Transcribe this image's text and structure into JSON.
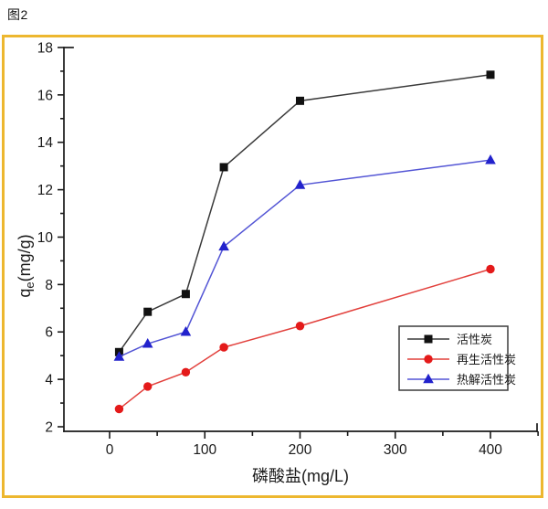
{
  "figure": {
    "caption": "图2"
  },
  "colors": {
    "frame_border": "#edb72f",
    "axis": "#1a1a1a",
    "legend_border": "#3c3c3c",
    "background": "#ffffff"
  },
  "chart_data": {
    "type": "line",
    "title": "",
    "xlabel": "磷酸盐(mg/L)",
    "ylabel": "qe(mg/g)",
    "ylabel_parts": {
      "base": "q",
      "sub": "e",
      "rest": "(mg/g)"
    },
    "x": [
      10,
      40,
      80,
      120,
      200,
      400
    ],
    "series": [
      {
        "name": "活性炭",
        "marker": "square",
        "color": "#111111",
        "line_color": "#3a3a3a",
        "values": [
          5.15,
          6.85,
          7.6,
          12.95,
          15.75,
          16.85
        ]
      },
      {
        "name": "再生活性炭",
        "marker": "circle",
        "color": "#e41a1a",
        "line_color": "#e2403c",
        "values": [
          2.75,
          3.7,
          4.3,
          5.35,
          6.25,
          8.65
        ]
      },
      {
        "name": "热解活性炭",
        "marker": "triangle",
        "color": "#2222cc",
        "line_color": "#5355d5",
        "values": [
          4.95,
          5.5,
          6.0,
          9.6,
          12.2,
          13.25
        ]
      }
    ],
    "xlim": [
      -50,
      450
    ],
    "ylim": [
      1.8,
      18.2
    ],
    "xticks": [
      0,
      100,
      200,
      300,
      400
    ],
    "xminor": [
      50,
      150,
      250,
      350,
      450
    ],
    "yticks": [
      2,
      4,
      6,
      8,
      10,
      12,
      14,
      16,
      18
    ],
    "yminor": [
      3,
      5,
      7,
      9,
      11,
      13,
      15,
      17
    ],
    "grid": false,
    "legend_position": "inside-right-middle"
  }
}
